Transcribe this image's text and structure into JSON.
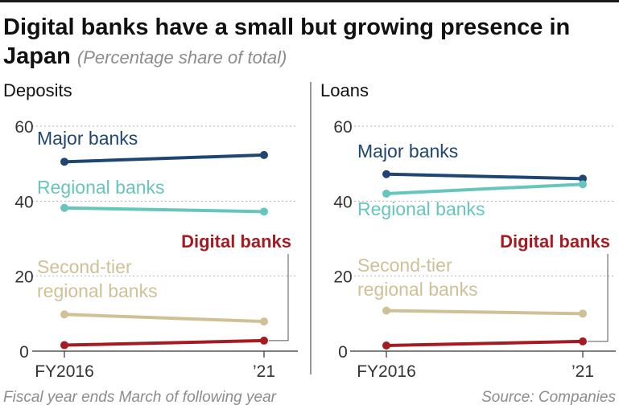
{
  "header": {
    "title": "Digital banks have a small but growing presence in Japan",
    "subtitle": "(Percentage share of total)"
  },
  "footer": {
    "note": "Fiscal year ends March of following year",
    "source": "Source: Companies"
  },
  "colors": {
    "major": "#1f4672",
    "regional": "#66c5bd",
    "second_tier": "#cfc096",
    "digital": "#a51b22"
  },
  "chart_data": [
    {
      "type": "line",
      "title": "Deposits",
      "x": [
        "FY2016",
        "’21"
      ],
      "ylim": [
        0,
        60
      ],
      "yticks": [
        0,
        20,
        40,
        60
      ],
      "grid": true,
      "series": [
        {
          "key": "major",
          "name": "Major banks",
          "values": [
            50.5,
            52.3
          ]
        },
        {
          "key": "regional",
          "name": "Regional banks",
          "values": [
            38.2,
            37.2
          ]
        },
        {
          "key": "second_tier",
          "name": "Second-tier regional banks",
          "name_lines": [
            "Second-tier",
            "regional banks"
          ],
          "values": [
            9.8,
            7.9
          ]
        },
        {
          "key": "digital",
          "name": "Digital banks",
          "values": [
            1.6,
            2.8
          ]
        }
      ]
    },
    {
      "type": "line",
      "title": "Loans",
      "x": [
        "FY2016",
        "’21"
      ],
      "ylim": [
        0,
        60
      ],
      "yticks": [
        0,
        20,
        40,
        60
      ],
      "grid": true,
      "series": [
        {
          "key": "major",
          "name": "Major banks",
          "values": [
            47.2,
            46.0
          ]
        },
        {
          "key": "regional",
          "name": "Regional banks",
          "values": [
            42.0,
            44.5
          ]
        },
        {
          "key": "second_tier",
          "name": "Second-tier regional banks",
          "name_lines": [
            "Second-tier",
            "regional banks"
          ],
          "values": [
            10.8,
            10.0
          ]
        },
        {
          "key": "digital",
          "name": "Digital banks",
          "values": [
            1.5,
            2.6
          ]
        }
      ]
    }
  ]
}
